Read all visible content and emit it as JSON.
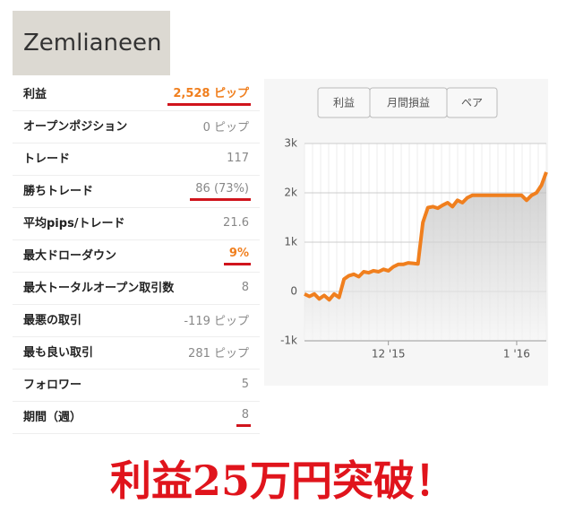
{
  "header": {
    "title": "Zemlianeen"
  },
  "stats": {
    "rows": [
      {
        "label": "利益",
        "value": "2,528 ピップ",
        "accent": true,
        "underline": true
      },
      {
        "label": "オープンポジション",
        "value": "0 ピップ"
      },
      {
        "label": "トレード",
        "value": "117"
      },
      {
        "label": "勝ちトレード",
        "value": "86 (73%)",
        "underline": true
      },
      {
        "label": "平均pips/トレード",
        "value": "21.6"
      },
      {
        "label": "最大ドローダウン",
        "value": "9%",
        "accent": true,
        "underline": true
      },
      {
        "label": "最大トータルオープン取引数",
        "value": "8"
      },
      {
        "label": "最悪の取引",
        "value": "-119 ピップ"
      },
      {
        "label": "最も良い取引",
        "value": "281 ピップ"
      },
      {
        "label": "フォロワー",
        "value": "5"
      },
      {
        "label": "期間（週）",
        "value": "8",
        "underline": true
      }
    ]
  },
  "tabs": [
    "利益",
    "月間損益",
    "ペア"
  ],
  "chart_data": {
    "type": "line",
    "color": "#f07f1e",
    "values": [
      -50,
      -100,
      -50,
      -150,
      -80,
      -170,
      -50,
      -120,
      250,
      320,
      350,
      300,
      400,
      380,
      420,
      400,
      450,
      420,
      500,
      550,
      550,
      580,
      570,
      560,
      1400,
      1700,
      1720,
      1690,
      1750,
      1800,
      1720,
      1850,
      1800,
      1900,
      1950,
      1950,
      1950,
      1950,
      1950,
      1950,
      1950,
      1950,
      1950,
      1950,
      1950,
      1850,
      1950,
      2000,
      2150,
      2420
    ],
    "xlim": [
      0,
      49
    ],
    "xticks": [
      {
        "value": 17,
        "label": "12 '15"
      },
      {
        "value": 43,
        "label": "1 '16"
      }
    ],
    "ylim": [
      -1000,
      3000
    ],
    "yticks": [
      {
        "value": -1000,
        "label": "-1k"
      },
      0,
      {
        "value": 1000,
        "label": "1k"
      },
      {
        "value": 2000,
        "label": "2k"
      },
      {
        "value": 3000,
        "label": "3k"
      }
    ],
    "grid": true
  },
  "banner": {
    "text": "利益25万円突破！"
  }
}
